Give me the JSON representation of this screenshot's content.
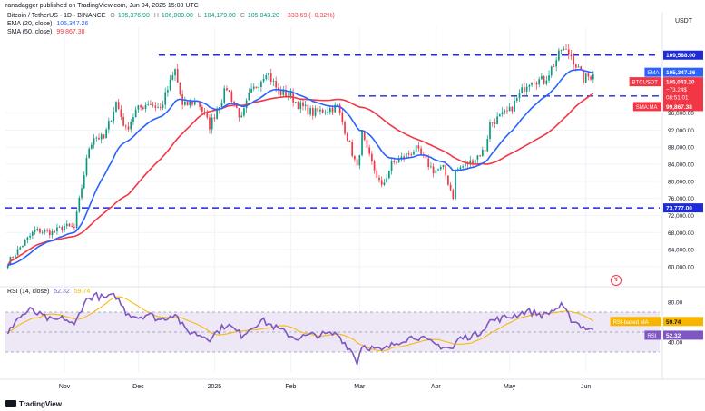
{
  "header": {
    "publisher": "ranadagger published on TradingView.com, Jun 04, 2025 15:08 UTC",
    "symbol": "Bitcoin / TetherUS · 1D · BINANCE",
    "ohlc": {
      "o_label": "O",
      "o": "105,376.90",
      "h_label": "H",
      "h": "106,000.00",
      "l_label": "L",
      "l": "104,179.00",
      "c_label": "C",
      "c": "105,043.20",
      "change": "−333.69 (−0.32%)"
    },
    "ema_label": "EMA (20, close)",
    "ema_value": "105,347.26",
    "sma_label": "SMA (50, close)",
    "sma_value": "99,867.38",
    "currency": "USDT"
  },
  "rsi_header": {
    "label": "RSI (14, close)",
    "rsi_value": "52.32",
    "ma_value": "59.74"
  },
  "footer": {
    "brand": "TradingView"
  },
  "colors": {
    "up": "#089981",
    "down": "#f23645",
    "ema": "#2962ff",
    "sma": "#f23645",
    "rsi": "#7e57c2",
    "rsi_ma": "#f7b500",
    "level_line": "#1e2bd6",
    "rsi_band": "#ede7f6"
  },
  "chart_data": [
    {
      "type": "candlestick",
      "title": "Bitcoin / TetherUS · 1D · BINANCE",
      "ylim": [
        57000,
        114000
      ],
      "y_ticks": [
        "60,000.00",
        "64,000.00",
        "68,000.00",
        "72,000.00",
        "76,000.00",
        "80,000.00",
        "84,000.00",
        "88,000.00",
        "92,000.00",
        "96,000.00"
      ],
      "x_ticks": [
        {
          "label": "Nov",
          "date": "2024-11-01"
        },
        {
          "label": "Dec",
          "date": "2024-12-01"
        },
        {
          "label": "2025",
          "date": "2025-01-01"
        },
        {
          "label": "Feb",
          "date": "2025-02-01"
        },
        {
          "label": "Mar",
          "date": "2025-03-01"
        },
        {
          "label": "Apr",
          "date": "2025-04-01"
        },
        {
          "label": "May",
          "date": "2025-05-01"
        },
        {
          "label": "Jun",
          "date": "2025-06-01"
        }
      ],
      "x_range": [
        "2024-10-08",
        "2025-07-01"
      ],
      "close_path": [
        [
          "2024-10-09",
          61000
        ],
        [
          "2024-10-14",
          64500
        ],
        [
          "2024-10-20",
          68500
        ],
        [
          "2024-10-27",
          68000
        ],
        [
          "2024-11-01",
          69500
        ],
        [
          "2024-11-05",
          69000
        ],
        [
          "2024-11-07",
          75500
        ],
        [
          "2024-11-11",
          88000
        ],
        [
          "2024-11-13",
          90500
        ],
        [
          "2024-11-17",
          90000
        ],
        [
          "2024-11-22",
          98500
        ],
        [
          "2024-11-26",
          92000
        ],
        [
          "2024-11-30",
          96500
        ],
        [
          "2024-12-05",
          98500
        ],
        [
          "2024-12-10",
          97000
        ],
        [
          "2024-12-16",
          106000
        ],
        [
          "2024-12-19",
          97500
        ],
        [
          "2024-12-25",
          99000
        ],
        [
          "2024-12-30",
          93000
        ],
        [
          "2025-01-06",
          102000
        ],
        [
          "2025-01-12",
          94500
        ],
        [
          "2025-01-15",
          100000
        ],
        [
          "2025-01-20",
          104000
        ],
        [
          "2025-01-22",
          106000
        ],
        [
          "2025-01-27",
          101000
        ],
        [
          "2025-02-01",
          100000
        ],
        [
          "2025-02-04",
          98000
        ],
        [
          "2025-02-10",
          96000
        ],
        [
          "2025-02-20",
          97500
        ],
        [
          "2025-02-25",
          88500
        ],
        [
          "2025-02-28",
          83000
        ],
        [
          "2025-03-02",
          91000
        ],
        [
          "2025-03-04",
          87000
        ],
        [
          "2025-03-10",
          78500
        ],
        [
          "2025-03-14",
          84000
        ],
        [
          "2025-03-24",
          87500
        ],
        [
          "2025-03-31",
          82500
        ],
        [
          "2025-04-04",
          83000
        ],
        [
          "2025-04-08",
          76500
        ],
        [
          "2025-04-09",
          82500
        ],
        [
          "2025-04-15",
          84500
        ],
        [
          "2025-04-21",
          87500
        ],
        [
          "2025-04-23",
          93500
        ],
        [
          "2025-05-01",
          96500
        ],
        [
          "2025-05-08",
          103000
        ],
        [
          "2025-05-10",
          104000
        ],
        [
          "2025-05-15",
          103500
        ],
        [
          "2025-05-21",
          109500
        ],
        [
          "2025-05-22",
          111000
        ],
        [
          "2025-05-26",
          109500
        ],
        [
          "2025-05-31",
          104000
        ],
        [
          "2025-06-04",
          105043
        ]
      ],
      "series": [
        {
          "name": "EMA (20, close)",
          "color": "#2962ff"
        },
        {
          "name": "SMA (50, close)",
          "color": "#f23645"
        }
      ],
      "horizontal_levels": [
        {
          "value": 109588,
          "label": "109,588.00"
        },
        {
          "value": 100000,
          "label": "100,000.00"
        },
        {
          "value": 73777,
          "label": "73,777.00"
        }
      ],
      "price_tags": [
        {
          "text": "EMA",
          "value": 105347.26,
          "label": "105,347.26",
          "color": "#2962ff"
        },
        {
          "text": "BTCUSDT",
          "value": 105043.2,
          "label": "105,043.20",
          "extra": [
            "−73.24$",
            "08:51:01"
          ],
          "color": "#f23645"
        },
        {
          "text": "SMA:MA",
          "value": 99867.38,
          "label": "99,867.38",
          "color": "#f23645"
        }
      ]
    },
    {
      "type": "line",
      "title": "RSI (14, close)",
      "ylim": [
        10,
        90
      ],
      "y_ticks": [
        "80.00",
        "40.00"
      ],
      "band": [
        30,
        70
      ],
      "rsi_path": [
        [
          "2024-10-09",
          47
        ],
        [
          "2024-10-12",
          62
        ],
        [
          "2024-10-18",
          72
        ],
        [
          "2024-10-27",
          61
        ],
        [
          "2024-11-01",
          64
        ],
        [
          "2024-11-05",
          56
        ],
        [
          "2024-11-09",
          80
        ],
        [
          "2024-11-13",
          87
        ],
        [
          "2024-11-17",
          84
        ],
        [
          "2024-11-22",
          86
        ],
        [
          "2024-11-26",
          70
        ],
        [
          "2024-12-01",
          65
        ],
        [
          "2024-12-05",
          68
        ],
        [
          "2024-12-10",
          62
        ],
        [
          "2024-12-16",
          69
        ],
        [
          "2024-12-20",
          52
        ],
        [
          "2024-12-30",
          44
        ],
        [
          "2025-01-06",
          58
        ],
        [
          "2025-01-12",
          47
        ],
        [
          "2025-01-20",
          62
        ],
        [
          "2025-01-27",
          53
        ],
        [
          "2025-02-03",
          44
        ],
        [
          "2025-02-10",
          47
        ],
        [
          "2025-02-20",
          48
        ],
        [
          "2025-02-26",
          30
        ],
        [
          "2025-02-28",
          20
        ],
        [
          "2025-03-02",
          37
        ],
        [
          "2025-03-10",
          31
        ],
        [
          "2025-03-18",
          42
        ],
        [
          "2025-03-24",
          46
        ],
        [
          "2025-03-31",
          38
        ],
        [
          "2025-04-08",
          33
        ],
        [
          "2025-04-10",
          43
        ],
        [
          "2025-04-18",
          48
        ],
        [
          "2025-04-23",
          61
        ],
        [
          "2025-05-02",
          66
        ],
        [
          "2025-05-08",
          71
        ],
        [
          "2025-05-15",
          67
        ],
        [
          "2025-05-22",
          76
        ],
        [
          "2025-05-26",
          63
        ],
        [
          "2025-05-31",
          55
        ],
        [
          "2025-06-04",
          52.32
        ]
      ],
      "series": [
        {
          "name": "RSI",
          "color": "#7e57c2",
          "last": 52.32
        },
        {
          "name": "RSI-based MA",
          "color": "#f7b500",
          "last": 59.74
        }
      ]
    }
  ]
}
